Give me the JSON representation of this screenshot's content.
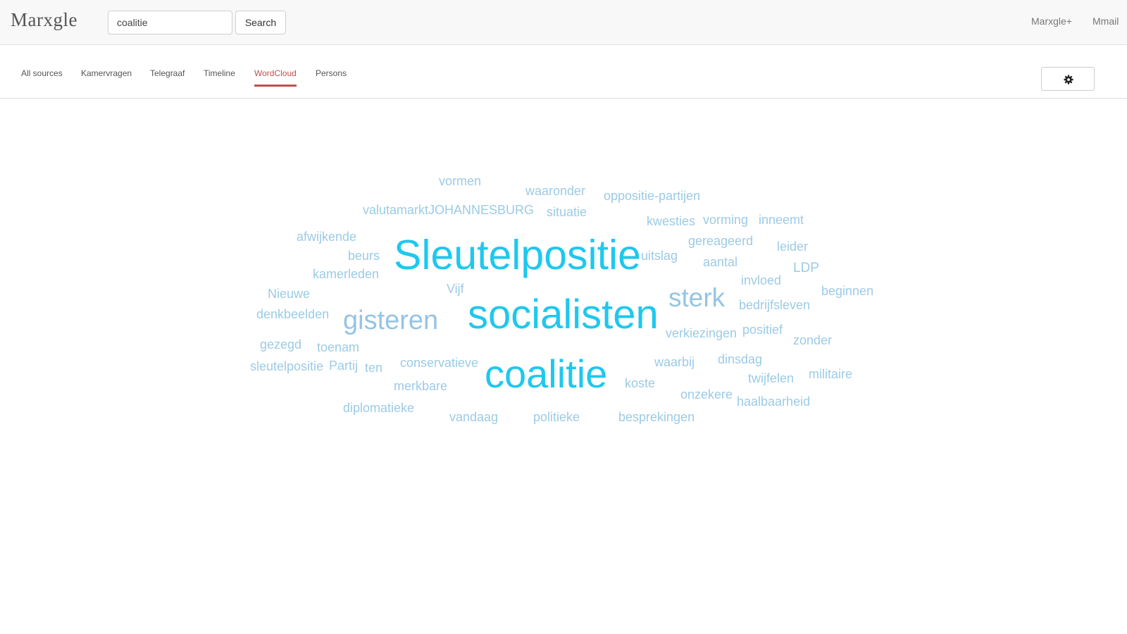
{
  "app": {
    "logo": "Marxgle"
  },
  "search": {
    "value": "coalitie",
    "button_label": "Search"
  },
  "top_links": [
    "Marxgle+",
    "Mmail"
  ],
  "tabs": [
    {
      "label": "All sources",
      "active": false
    },
    {
      "label": "Kamervragen",
      "active": false
    },
    {
      "label": "Telegraaf",
      "active": false
    },
    {
      "label": "Timeline",
      "active": false
    },
    {
      "label": "WordCloud",
      "active": true
    },
    {
      "label": "Persons",
      "active": false
    }
  ],
  "settings": {
    "icon": "gear-icon"
  },
  "colors": {
    "accent": "#c0504d",
    "word_large": "#1ec8ee",
    "word_small": "#9ccbe6"
  },
  "wordcloud": {
    "words": [
      {
        "text": "Sleutelpositie"
      },
      {
        "text": "socialisten"
      },
      {
        "text": "coalitie"
      },
      {
        "text": "gisteren"
      },
      {
        "text": "sterk"
      },
      {
        "text": "vormen"
      },
      {
        "text": "waaronder"
      },
      {
        "text": "oppositie-partijen"
      },
      {
        "text": "valutamarktJOHANNESBURG"
      },
      {
        "text": "situatie"
      },
      {
        "text": "kwesties"
      },
      {
        "text": "vorming"
      },
      {
        "text": "inneemt"
      },
      {
        "text": "afwijkende"
      },
      {
        "text": "gereageerd"
      },
      {
        "text": "leider"
      },
      {
        "text": "beurs"
      },
      {
        "text": "uitslag"
      },
      {
        "text": "aantal"
      },
      {
        "text": "LDP"
      },
      {
        "text": "kamerleden"
      },
      {
        "text": "invloed"
      },
      {
        "text": "Vijf"
      },
      {
        "text": "beginnen"
      },
      {
        "text": "Nieuwe"
      },
      {
        "text": "bedrijfsleven"
      },
      {
        "text": "denkbeelden"
      },
      {
        "text": "verkiezingen"
      },
      {
        "text": "positief"
      },
      {
        "text": "zonder"
      },
      {
        "text": "gezegd"
      },
      {
        "text": "toenam"
      },
      {
        "text": "waarbij"
      },
      {
        "text": "dinsdag"
      },
      {
        "text": "sleutelpositie"
      },
      {
        "text": "Partij"
      },
      {
        "text": "ten"
      },
      {
        "text": "conservatieve"
      },
      {
        "text": "militaire"
      },
      {
        "text": "twijfelen"
      },
      {
        "text": "merkbare"
      },
      {
        "text": "koste"
      },
      {
        "text": "onzekere"
      },
      {
        "text": "haalbaarheid"
      },
      {
        "text": "diplomatieke"
      },
      {
        "text": "vandaag"
      },
      {
        "text": "politieke"
      },
      {
        "text": "besprekingen"
      }
    ]
  }
}
